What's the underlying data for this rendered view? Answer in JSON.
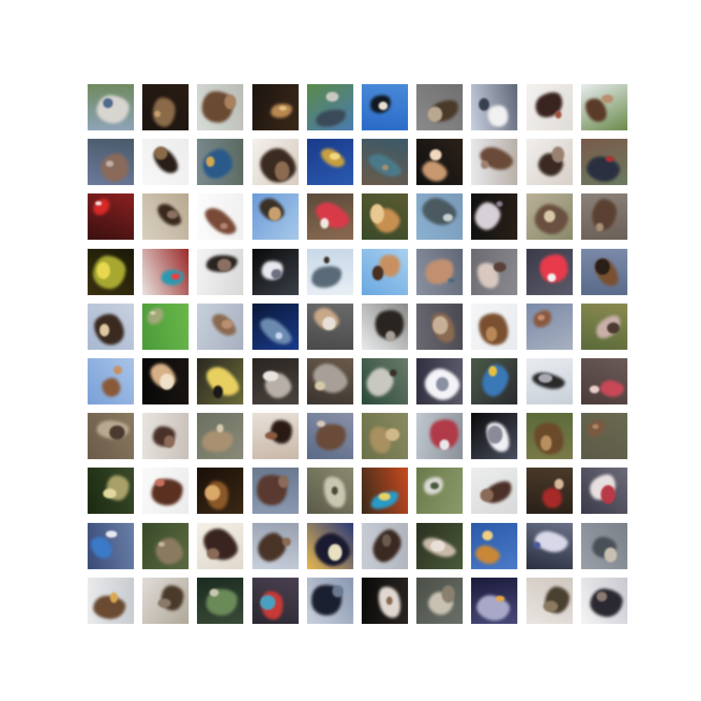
{
  "grid": {
    "rows": 10,
    "cols": 10,
    "tiles": [
      {
        "bg": [
          "#8ea3b8",
          "#6f8a5e"
        ],
        "blob": "#d8d4d0",
        "fleck": "#4b6a8c"
      },
      {
        "bg": [
          "#1a1410",
          "#2a1c14"
        ],
        "blob": "#8a6a48",
        "fleck": "#c8a070"
      },
      {
        "bg": [
          "#d8dcd8",
          "#b8bcb4"
        ],
        "blob": "#6a4a30",
        "fleck": "#a88060"
      },
      {
        "bg": [
          "#1c1410",
          "#3a2818"
        ],
        "blob": "#b88850",
        "fleck": "#e0c080"
      },
      {
        "bg": [
          "#5a8a4a",
          "#4a7ab0"
        ],
        "blob": "#3a4a58",
        "fleck": "#c8c8c0"
      },
      {
        "bg": [
          "#2a6ac8",
          "#4a8ad8"
        ],
        "blob": "#101820",
        "fleck": "#e8e0d0"
      },
      {
        "bg": [
          "#8a8a8a",
          "#707070"
        ],
        "blob": "#4a3a2a",
        "fleck": "#b8a890"
      },
      {
        "bg": [
          "#c8d0e0",
          "#606878"
        ],
        "blob": "#f0f0f0",
        "fleck": "#384050"
      },
      {
        "bg": [
          "#f4f2f0",
          "#e0dcd8"
        ],
        "blob": "#3a2420",
        "fleck": "#a05040"
      },
      {
        "bg": [
          "#e8ecf0",
          "#6a8a4a"
        ],
        "blob": "#5a3a28",
        "fleck": "#b89070"
      },
      {
        "bg": [
          "#6a7a9a",
          "#4a5a6a"
        ],
        "blob": "#8a6a5a",
        "fleck": "#c0b0a8"
      },
      {
        "bg": [
          "#f8f8f8",
          "#ececec"
        ],
        "blob": "#2a1e18",
        "fleck": "#8a6a48"
      },
      {
        "bg": [
          "#7a8a90",
          "#5a6a60"
        ],
        "blob": "#2a5a8a",
        "fleck": "#d0a850"
      },
      {
        "bg": [
          "#f4f0ec",
          "#d8ccc0"
        ],
        "blob": "#3a2a20",
        "fleck": "#8a6a50"
      },
      {
        "bg": [
          "#1a3a8a",
          "#2a5ab0"
        ],
        "blob": "#c8a040",
        "fleck": "#f0d880"
      },
      {
        "bg": [
          "#6a5a4a",
          "#3a5a6a"
        ],
        "blob": "#4a7a8a",
        "fleck": "#a89070"
      },
      {
        "bg": [
          "#101010",
          "#2a2018"
        ],
        "blob": "#c89870",
        "fleck": "#f0d8c0"
      },
      {
        "bg": [
          "#e8e8ec",
          "#b8b0a8"
        ],
        "blob": "#6a4a38",
        "fleck": "#a08070"
      },
      {
        "bg": [
          "#f0eeec",
          "#d8d0c8"
        ],
        "blob": "#3a2a22",
        "fleck": "#9a8070"
      },
      {
        "bg": [
          "#7a5a4a",
          "#6a7a60"
        ],
        "blob": "#2a3040",
        "fleck": "#b03030"
      },
      {
        "bg": [
          "#3a1010",
          "#8a2020"
        ],
        "blob": "#d82828",
        "fleck": "#f0e0e0"
      },
      {
        "bg": [
          "#d8d0c0",
          "#b8a890"
        ],
        "blob": "#3a2a1e",
        "fleck": "#8a7060"
      },
      {
        "bg": [
          "#fcfcfc",
          "#f0f0f0"
        ],
        "blob": "#7a4a38",
        "fleck": "#b08070"
      },
      {
        "bg": [
          "#6a9ad8",
          "#a8c8e8"
        ],
        "blob": "#3a3028",
        "fleck": "#c8a070"
      },
      {
        "bg": [
          "#5a4a3a",
          "#8a6a50"
        ],
        "blob": "#d83a48",
        "fleck": "#f0e8e0"
      },
      {
        "bg": [
          "#3a4a2a",
          "#5a5a30"
        ],
        "blob": "#c89050",
        "fleck": "#e8c890"
      },
      {
        "bg": [
          "#8ab0d0",
          "#7a9ab8"
        ],
        "blob": "#4a5a60",
        "fleck": "#c8d0d0"
      },
      {
        "bg": [
          "#101010",
          "#282018"
        ],
        "blob": "#d8d0d8",
        "fleck": "#8a8090"
      },
      {
        "bg": [
          "#b8b098",
          "#8a8a6a"
        ],
        "blob": "#6a5040",
        "fleck": "#d8c8a8"
      },
      {
        "bg": [
          "#8a8078",
          "#6a6058"
        ],
        "blob": "#5a4030",
        "fleck": "#a89078"
      },
      {
        "bg": [
          "#3a3010",
          "#1a1a08"
        ],
        "blob": "#a8a830",
        "fleck": "#e8d850"
      },
      {
        "bg": [
          "#e8e4e0",
          "#9a2a2a"
        ],
        "blob": "#2a9ab0",
        "fleck": "#e84040"
      },
      {
        "bg": [
          "#f4f4f4",
          "#d8d8d8"
        ],
        "blob": "#2a2420",
        "fleck": "#8a7060"
      },
      {
        "bg": [
          "#0a0a0a",
          "#3a4048"
        ],
        "blob": "#e8e8f0",
        "fleck": "#6a7080"
      },
      {
        "bg": [
          "#c8d8e8",
          "#e8eef4"
        ],
        "blob": "#5a6a78",
        "fleck": "#3a3028"
      },
      {
        "bg": [
          "#6aa8e0",
          "#a8d0f0"
        ],
        "blob": "#c89060",
        "fleck": "#4a3020"
      },
      {
        "bg": [
          "#8a90a0",
          "#606878"
        ],
        "blob": "#c09070",
        "fleck": "#4a6880"
      },
      {
        "bg": [
          "#6a6a70",
          "#8a8a90"
        ],
        "blob": "#d8c8c0",
        "fleck": "#5a4038"
      },
      {
        "bg": [
          "#3a3a48",
          "#5a5a6a"
        ],
        "blob": "#e83a4a",
        "fleck": "#f0f0f0"
      },
      {
        "bg": [
          "#5a6a8a",
          "#7a8aa8"
        ],
        "blob": "#7a5030",
        "fleck": "#2a1e18"
      },
      {
        "bg": [
          "#a8b8d0",
          "#c8d0e0"
        ],
        "blob": "#3a2a20",
        "fleck": "#e0c8a0"
      },
      {
        "bg": [
          "#4a9a3a",
          "#6ab84a"
        ],
        "blob": "#a0a878",
        "fleck": "#d8d8b0"
      },
      {
        "bg": [
          "#c8d0dc",
          "#a8b0c0"
        ],
        "blob": "#8a6a50",
        "fleck": "#b89070"
      },
      {
        "bg": [
          "#0a1a3a",
          "#1a3a8a"
        ],
        "blob": "#6a8ab0",
        "fleck": "#c8d8f0"
      },
      {
        "bg": [
          "#4a4a4a",
          "#6a6a6a"
        ],
        "blob": "#c8a888",
        "fleck": "#e8e0d8"
      },
      {
        "bg": [
          "#e8eaec",
          "#8a8a88"
        ],
        "blob": "#2a2420",
        "fleck": "#a8a098"
      },
      {
        "bg": [
          "#6a6870",
          "#4a4850"
        ],
        "blob": "#8a6a50",
        "fleck": "#c8b098"
      },
      {
        "bg": [
          "#f4f6f8",
          "#e8eaee"
        ],
        "blob": "#7a5030",
        "fleck": "#b88858"
      },
      {
        "bg": [
          "#7a8aa8",
          "#a8b0c0"
        ],
        "blob": "#8a5a40",
        "fleck": "#c89070"
      },
      {
        "bg": [
          "#5a6a3a",
          "#8a8a50"
        ],
        "blob": "#c8b0a8",
        "fleck": "#4a3a30"
      },
      {
        "bg": [
          "#7aa0d8",
          "#a8c4e8"
        ],
        "blob": "#8a5a38",
        "fleck": "#c89060"
      },
      {
        "bg": [
          "#080808",
          "#1a1410"
        ],
        "blob": "#d8b088",
        "fleck": "#f0e0c8"
      },
      {
        "bg": [
          "#2a2820",
          "#6a6a3a"
        ],
        "blob": "#e8d060",
        "fleck": "#1a1814"
      },
      {
        "bg": [
          "#2a2420",
          "#4a4440"
        ],
        "blob": "#b8b0a8",
        "fleck": "#e8e4e0"
      },
      {
        "bg": [
          "#3a3430",
          "#6a5a4a"
        ],
        "blob": "#a8a098",
        "fleck": "#d8c8a8"
      },
      {
        "bg": [
          "#2a4a3a",
          "#6a7a6a"
        ],
        "blob": "#c8c8c0",
        "fleck": "#3a3028"
      },
      {
        "bg": [
          "#303040",
          "#5a5a6a"
        ],
        "blob": "#f4f4f8",
        "fleck": "#8a90a0"
      },
      {
        "bg": [
          "#4a5a48",
          "#2a2a30"
        ],
        "blob": "#3a78b8",
        "fleck": "#e8c040"
      },
      {
        "bg": [
          "#e8ecf0",
          "#c8d0d8"
        ],
        "blob": "#2a2a2a",
        "fleck": "#a8a8b0"
      },
      {
        "bg": [
          "#4a3a38",
          "#6a5a58"
        ],
        "blob": "#c84858",
        "fleck": "#e8d0c8"
      },
      {
        "bg": [
          "#6a5a48",
          "#8a7a60"
        ],
        "blob": "#b8a890",
        "fleck": "#4a3a30"
      },
      {
        "bg": [
          "#e8e4e0",
          "#c8c0b8"
        ],
        "blob": "#4a3228",
        "fleck": "#8a6a58"
      },
      {
        "bg": [
          "#6a7060",
          "#8a8a78"
        ],
        "blob": "#a89070",
        "fleck": "#d8c8b0"
      },
      {
        "bg": [
          "#e8e0d8",
          "#c8b8a8"
        ],
        "blob": "#2a1a14",
        "fleck": "#8a5a40"
      },
      {
        "bg": [
          "#5a6a88",
          "#8a90a8"
        ],
        "blob": "#6a4a38",
        "fleck": "#d8c8b8"
      },
      {
        "bg": [
          "#6a7048",
          "#8a8a60"
        ],
        "blob": "#a89060",
        "fleck": "#d0b888"
      },
      {
        "bg": [
          "#c0c8d0",
          "#8a9098"
        ],
        "blob": "#b03a48",
        "fleck": "#e8e8ec"
      },
      {
        "bg": [
          "#0a0a0a",
          "#4a5060"
        ],
        "blob": "#f0f0f4",
        "fleck": "#8a8a98"
      },
      {
        "bg": [
          "#5a6a3a",
          "#7a7a48"
        ],
        "blob": "#6a4a28",
        "fleck": "#b89060"
      },
      {
        "bg": [
          "#5a5a48",
          "#6a6a50"
        ],
        "blob": "#7a5a40",
        "fleck": "#b08868"
      },
      {
        "bg": [
          "#1a2a10",
          "#3a4a2a"
        ],
        "blob": "#a8a068",
        "fleck": "#e0d8a0"
      },
      {
        "bg": [
          "#fafafa",
          "#ececec"
        ],
        "blob": "#5a3020",
        "fleck": "#c87060"
      },
      {
        "bg": [
          "#1a1008",
          "#3a2814"
        ],
        "blob": "#8a5828",
        "fleck": "#d8a868"
      },
      {
        "bg": [
          "#8a98b0",
          "#6a7890"
        ],
        "blob": "#5a3a30",
        "fleck": "#8a6a58"
      },
      {
        "bg": [
          "#5a5a48",
          "#8a8a70"
        ],
        "blob": "#c8c8b0",
        "fleck": "#4a4a38"
      },
      {
        "bg": [
          "#3a2a1a",
          "#c84a20"
        ],
        "blob": "#2a9ac8",
        "fleck": "#e8d068"
      },
      {
        "bg": [
          "#6a7a4a",
          "#8a9a6a"
        ],
        "blob": "#d8d8d0",
        "fleck": "#4a5a40"
      },
      {
        "bg": [
          "#eceeee",
          "#d8d8d8"
        ],
        "blob": "#4a3028",
        "fleck": "#8a6a58"
      },
      {
        "bg": [
          "#2a2018",
          "#4a3a2a"
        ],
        "blob": "#a82a28",
        "fleck": "#d8b898"
      },
      {
        "bg": [
          "#3a3a48",
          "#6a6a78"
        ],
        "blob": "#e8e0e0",
        "fleck": "#b83a48"
      },
      {
        "bg": [
          "#3a4a78",
          "#6a80a8"
        ],
        "blob": "#3a7ac8",
        "fleck": "#e8e8f0"
      },
      {
        "bg": [
          "#3a4a2a",
          "#5a6a40"
        ],
        "blob": "#8a7a60",
        "fleck": "#c8b898"
      },
      {
        "bg": [
          "#f4f0e8",
          "#e0d8cc"
        ],
        "blob": "#3a2420",
        "fleck": "#8a6a58"
      },
      {
        "bg": [
          "#c8d0dc",
          "#98a0b0"
        ],
        "blob": "#4a3428",
        "fleck": "#8a6a50"
      },
      {
        "bg": [
          "#e8b850",
          "#2a3a78"
        ],
        "blob": "#1a1a30",
        "fleck": "#e8e0c0"
      },
      {
        "bg": [
          "#c8ccd4",
          "#b0b4bc"
        ],
        "blob": "#3a2a22",
        "fleck": "#6a5a50"
      },
      {
        "bg": [
          "#2a3020",
          "#4a5a38"
        ],
        "blob": "#c8b8a8",
        "fleck": "#e8e0d8"
      },
      {
        "bg": [
          "#2a5aa8",
          "#4a7ac8"
        ],
        "blob": "#c88838",
        "fleck": "#f0d080"
      },
      {
        "bg": [
          "#2a3040",
          "#6a7088"
        ],
        "blob": "#d8d8e8",
        "fleck": "#4a5a98"
      },
      {
        "bg": [
          "#9aa0a8",
          "#7a8088"
        ],
        "blob": "#4a5058",
        "fleck": "#c8c0b0"
      },
      {
        "bg": [
          "#e8eaec",
          "#c8ccd0"
        ],
        "blob": "#6a4a30",
        "fleck": "#d8a850"
      },
      {
        "bg": [
          "#e0dcd8",
          "#b0a898"
        ],
        "blob": "#4a3a2a",
        "fleck": "#8a7a68"
      },
      {
        "bg": [
          "#1a2a20",
          "#3a4a38"
        ],
        "blob": "#6a8a58",
        "fleck": "#c8c8b0"
      },
      {
        "bg": [
          "#2a2830",
          "#4a4050"
        ],
        "blob": "#c83a38",
        "fleck": "#4aa0c0"
      },
      {
        "bg": [
          "#c8d0dc",
          "#8a98b0"
        ],
        "blob": "#1a2030",
        "fleck": "#6a7890"
      },
      {
        "bg": [
          "#0a0a0a",
          "#2a2420"
        ],
        "blob": "#e0d8d0",
        "fleck": "#8a6a50"
      },
      {
        "bg": [
          "#4a5048",
          "#6a7068"
        ],
        "blob": "#c8c0b0",
        "fleck": "#8a8070"
      },
      {
        "bg": [
          "#1a1a3a",
          "#4a4a7a"
        ],
        "blob": "#a8a8c8",
        "fleck": "#e8a848"
      },
      {
        "bg": [
          "#e8e4e0",
          "#d0c8c0"
        ],
        "blob": "#4a4030",
        "fleck": "#8a7a60"
      },
      {
        "bg": [
          "#f4f4f4",
          "#c8c8d0"
        ],
        "blob": "#2a2830",
        "fleck": "#8a7a70"
      }
    ]
  }
}
